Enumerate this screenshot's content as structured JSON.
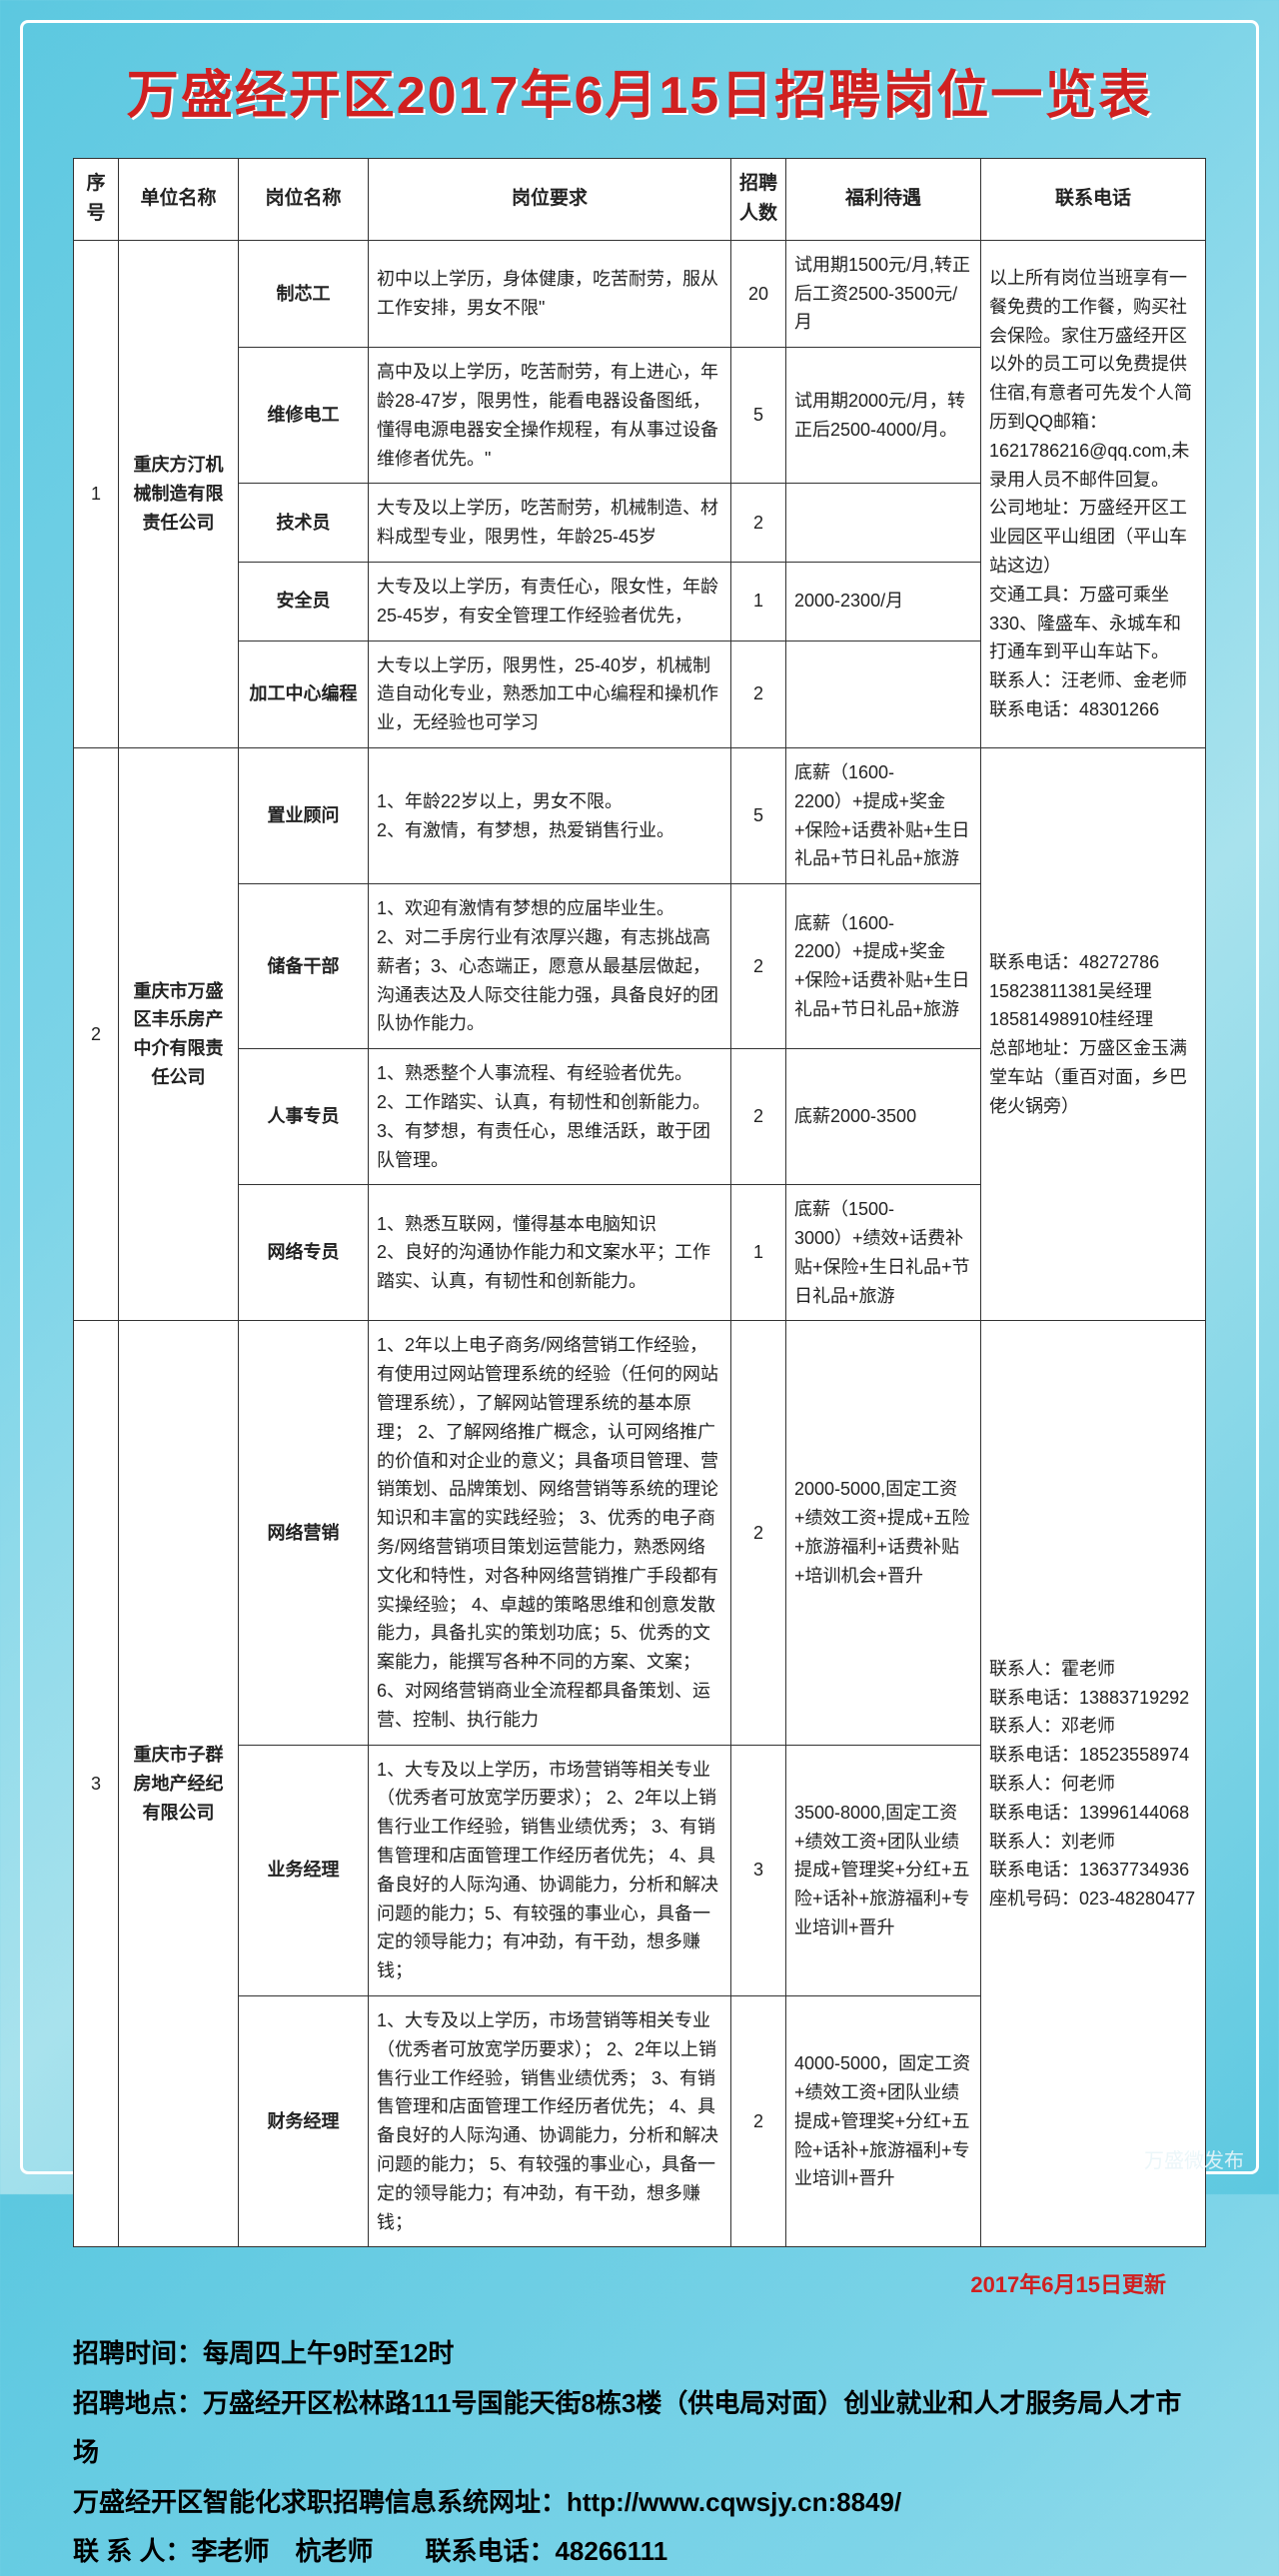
{
  "title": "万盛经开区2017年6月15日招聘岗位一览表",
  "headers": {
    "seq": "序号",
    "company": "单位名称",
    "position": "岗位名称",
    "requirement": "岗位要求",
    "count": "招聘人数",
    "salary": "福利待遇",
    "contact": "联系电话"
  },
  "groups": [
    {
      "seq": "1",
      "company": "重庆方汀机械制造有限责任公司",
      "contact": "以上所有岗位当班享有一餐免费的工作餐，购买社会保险。家住万盛经开区以外的员工可以免费提供住宿,有意者可先发个人简历到QQ邮箱：1621786216@qq.com,未录用人员不邮件回复。\n公司地址：万盛经开区工业园区平山组团（平山车站这边）\n交通工具：万盛可乘坐330、隆盛车、永城车和打通车到平山车站下。\n联系人：汪老师、金老师　　联系电话：48301266",
      "rows": [
        {
          "position": "制芯工",
          "requirement": "初中以上学历，身体健康，吃苦耐劳，服从工作安排，男女不限\"",
          "count": "20",
          "salary": "试用期1500元/月,转正后工资2500-3500元/月"
        },
        {
          "position": "维修电工",
          "requirement": "高中及以上学历，吃苦耐劳，有上进心，年龄28-47岁，限男性，能看电器设备图纸，懂得电源电器安全操作规程，有从事过设备维修者优先。\"",
          "count": "5",
          "salary": "试用期2000元/月，转正后2500-4000/月。"
        },
        {
          "position": "技术员",
          "requirement": "大专及以上学历，吃苦耐劳，机械制造、材料成型专业，限男性，年龄25-45岁",
          "count": "2",
          "salary": ""
        },
        {
          "position": "安全员",
          "requirement": "大专及以上学历，有责任心，限女性，年龄25-45岁，有安全管理工作经验者优先，",
          "count": "1",
          "salary": "2000-2300/月"
        },
        {
          "position": "加工中心编程",
          "requirement": "大专以上学历，限男性，25-40岁，机械制造自动化专业，熟悉加工中心编程和操机作业，无经验也可学习",
          "count": "2",
          "salary": ""
        }
      ]
    },
    {
      "seq": "2",
      "company": "重庆市万盛区丰乐房产中介有限责任公司",
      "contact": "联系电话：48272786\n15823811381吴经理\n18581498910桂经理\n总部地址：万盛区金玉满堂车站（重百对面，乡巴佬火锅旁）",
      "rows": [
        {
          "position": "置业顾问",
          "requirement": "1、年龄22岁以上，男女不限。\n2、有激情，有梦想，热爱销售行业。",
          "count": "5",
          "salary": "底薪（1600-2200）+提成+奖金+保险+话费补贴+生日礼品+节日礼品+旅游"
        },
        {
          "position": "储备干部",
          "requirement": "1、欢迎有激情有梦想的应届毕业生。\n2、对二手房行业有浓厚兴趣，有志挑战高薪者；3、心态端正，愿意从最基层做起，沟通表达及人际交往能力强，具备良好的团队协作能力。",
          "count": "2",
          "salary": "底薪（1600-2200）+提成+奖金+保险+话费补贴+生日礼品+节日礼品+旅游"
        },
        {
          "position": "人事专员",
          "requirement": "1、熟悉整个人事流程、有经验者优先。\n2、工作踏实、认真，有韧性和创新能力。\n3、有梦想，有责任心，思维活跃，敢于团队管理。",
          "count": "2",
          "salary": "底薪2000-3500"
        },
        {
          "position": "网络专员",
          "requirement": "1、熟悉互联网，懂得基本电脑知识\n2、良好的沟通协作能力和文案水平；工作踏实、认真，有韧性和创新能力。",
          "count": "1",
          "salary": "底薪（1500-3000）+绩效+话费补贴+保险+生日礼品+节日礼品+旅游"
        }
      ]
    },
    {
      "seq": "3",
      "company": "重庆市子群房地产经纪有限公司",
      "contact": "联系人：霍老师\n联系电话：13883719292\n联系人：邓老师\n联系电话：18523558974\n联系人：何老师\n联系电话：13996144068\n联系人：刘老师\n联系电话：13637734936\n座机号码：023-48280477",
      "rows": [
        {
          "position": "网络营销",
          "requirement": "1、2年以上电子商务/网络营销工作经验，有使用过网站管理系统的经验（任何的网站管理系统），了解网站管理系统的基本原理； 2、了解网络推广概念，认可网络推广的价值和对企业的意义；具备项目管理、营销策划、品牌策划、网络营销等系统的理论知识和丰富的实践经验； 3、优秀的电子商务/网络营销项目策划运营能力，熟悉网络文化和特性，对各种网络营销推广手段都有实操经验； 4、卓越的策略思维和创意发散能力，具备扎实的策划功底；5、优秀的文案能力，能撰写各种不同的方案、文案； 6、对网络营销商业全流程都具备策划、运营、控制、执行能力",
          "count": "2",
          "salary": "2000-5000,固定工资+绩效工资+提成+五险+旅游福利+话费补贴+培训机会+晋升"
        },
        {
          "position": "业务经理",
          "requirement": "1、大专及以上学历，市场营销等相关专业（优秀者可放宽学历要求）； 2、2年以上销售行业工作经验，销售业绩优秀； 3、有销售管理和店面管理工作经历者优先； 4、具备良好的人际沟通、协调能力，分析和解决问题的能力；5、有较强的事业心，具备一定的领导能力；有冲劲，有干劲，想多赚钱；",
          "count": "3",
          "salary": "3500-8000,固定工资+绩效工资+团队业绩提成+管理奖+分红+五险+话补+旅游福利+专业培训+晋升"
        },
        {
          "position": "财务经理",
          "requirement": "1、大专及以上学历，市场营销等相关专业（优秀者可放宽学历要求）； 2、2年以上销售行业工作经验，销售业绩优秀； 3、有销售管理和店面管理工作经历者优先； 4、具备良好的人际沟通、协调能力，分析和解决问题的能力； 5、有较强的事业心，具备一定的领导能力；有冲劲，有干劲，想多赚钱；",
          "count": "2",
          "salary": "4000-5000，固定工资+绩效工资+团队业绩提成+管理奖+分红+五险+话补+旅游福利+专业培训+晋升"
        }
      ]
    }
  ],
  "update_note": "2017年6月15日更新",
  "footer": {
    "l1": "招聘时间：每周四上午9时至12时",
    "l2": "招聘地点：万盛经开区松林路111号国能天街8栋3楼（供电局对面）创业就业和人才服务局人才市场",
    "l3": "万盛经开区智能化求职招聘信息系统网址：http://www.cqwsjy.cn:8849/",
    "l4": "联 系 人：李老师　杭老师　　联系电话：48266111"
  },
  "watermark": "万盛微发布"
}
